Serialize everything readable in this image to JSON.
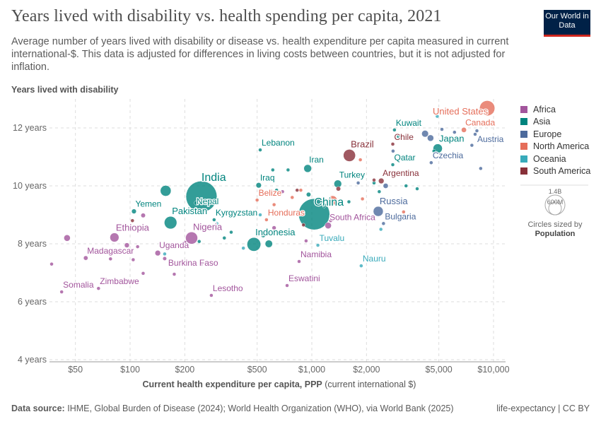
{
  "header": {
    "title": "Years lived with disability vs. health spending per capita, 2021",
    "subtitle": "Average number of years lived with disability or disease vs. health expenditure per capita measured in current international-$. This data is adjusted for differences in living costs between countries, but it is not adjusted for inflation.",
    "logo": "Our World in Data"
  },
  "footer": {
    "source_label": "Data source:",
    "source": "IHME, Global Burden of Disease (2024); World Health Organization (WHO), via World Bank (2025)",
    "license": "life-expectancy | CC BY"
  },
  "size_legend": {
    "values": [
      "1.4B",
      "600M"
    ],
    "caption": "Circles sized by",
    "caption_bold": "Population"
  },
  "colors": {
    "Africa": "#a2559c",
    "Asia": "#00847e",
    "Europe": "#4c6a9c",
    "North America": "#e56e5a",
    "Oceania": "#38aaba",
    "South America": "#883039"
  },
  "chart_data": {
    "type": "scatter",
    "title": "Years lived with disability vs. health spending per capita, 2021",
    "xlabel": "Current health expenditure per capita, PPP",
    "xlabel_unit": "(current international $)",
    "ylabel": "Years lived with disability",
    "x_scale": "log",
    "xlim": [
      35,
      11500
    ],
    "ylim": [
      4,
      12.9
    ],
    "x_ticks": [
      {
        "v": 50,
        "label": "$50"
      },
      {
        "v": 100,
        "label": "$100"
      },
      {
        "v": 200,
        "label": "$200"
      },
      {
        "v": 500,
        "label": "$500"
      },
      {
        "v": 1000,
        "label": "$1,000"
      },
      {
        "v": 2000,
        "label": "$2,000"
      },
      {
        "v": 5000,
        "label": "$5,000"
      },
      {
        "v": 10000,
        "label": "$10,000"
      }
    ],
    "y_ticks": [
      {
        "v": 4,
        "label": "4 years"
      },
      {
        "v": 6,
        "label": "6 years"
      },
      {
        "v": 8,
        "label": "8 years"
      },
      {
        "v": 10,
        "label": "10 years"
      },
      {
        "v": 12,
        "label": "12 years"
      }
    ],
    "grid": true,
    "legend": "right",
    "legend_entries": [
      "Africa",
      "Asia",
      "Europe",
      "North America",
      "Oceania",
      "South America"
    ],
    "points": [
      {
        "name": "United States",
        "region": "North America",
        "x": 9230,
        "y": 12.68,
        "pop": 337,
        "label": true
      },
      {
        "name": "Canada",
        "region": "North America",
        "x": 6870,
        "y": 11.93,
        "pop": 38,
        "label": true
      },
      {
        "name": "Austria",
        "region": "Europe",
        "x": 7920,
        "y": 11.78,
        "pop": 9,
        "label": true
      },
      {
        "name": "Japan",
        "region": "Asia",
        "x": 4930,
        "y": 11.29,
        "pop": 125,
        "label": true
      },
      {
        "name": "Czechia",
        "region": "Europe",
        "x": 4540,
        "y": 10.8,
        "pop": 10,
        "label": true
      },
      {
        "name": "Kuwait",
        "region": "Asia",
        "x": 2850,
        "y": 11.93,
        "pop": 4,
        "label": true
      },
      {
        "name": "Chile",
        "region": "South America",
        "x": 2790,
        "y": 11.44,
        "pop": 19,
        "label": true
      },
      {
        "name": "Qatar",
        "region": "Asia",
        "x": 2790,
        "y": 10.73,
        "pop": 3,
        "label": true
      },
      {
        "name": "Argentina",
        "region": "South America",
        "x": 2410,
        "y": 10.17,
        "pop": 45,
        "label": true
      },
      {
        "name": "Brazil",
        "region": "South America",
        "x": 1610,
        "y": 11.05,
        "pop": 214,
        "label": true
      },
      {
        "name": "Iran",
        "region": "Asia",
        "x": 949,
        "y": 10.6,
        "pop": 88,
        "label": true
      },
      {
        "name": "Turkey",
        "region": "Asia",
        "x": 1390,
        "y": 10.07,
        "pop": 85,
        "label": true
      },
      {
        "name": "China",
        "region": "Asia",
        "x": 1030,
        "y": 9.02,
        "pop": 1420,
        "label": true
      },
      {
        "name": "Russia",
        "region": "Europe",
        "x": 2320,
        "y": 9.12,
        "pop": 145,
        "label": true
      },
      {
        "name": "Bulgaria",
        "region": "Europe",
        "x": 2480,
        "y": 8.7,
        "pop": 7,
        "label": true
      },
      {
        "name": "South Africa",
        "region": "Africa",
        "x": 1230,
        "y": 8.63,
        "pop": 60,
        "label": true
      },
      {
        "name": "Tuvalu",
        "region": "Oceania",
        "x": 1080,
        "y": 7.95,
        "pop": 0.01,
        "label": true
      },
      {
        "name": "Namibia",
        "region": "Africa",
        "x": 851,
        "y": 7.39,
        "pop": 3,
        "label": true
      },
      {
        "name": "Nauru",
        "region": "Oceania",
        "x": 1870,
        "y": 7.24,
        "pop": 0.01,
        "label": true
      },
      {
        "name": "Eswatini",
        "region": "Africa",
        "x": 731,
        "y": 6.56,
        "pop": 1,
        "label": true
      },
      {
        "name": "Lebanon",
        "region": "Asia",
        "x": 520,
        "y": 11.24,
        "pop": 5,
        "label": true
      },
      {
        "name": "Iraq",
        "region": "Asia",
        "x": 510,
        "y": 10.02,
        "pop": 43,
        "label": true
      },
      {
        "name": "Belize",
        "region": "North America",
        "x": 500,
        "y": 9.51,
        "pop": 0.4,
        "label": true
      },
      {
        "name": "Honduras",
        "region": "North America",
        "x": 563,
        "y": 8.83,
        "pop": 10,
        "label": true
      },
      {
        "name": "Kyrgyzstan",
        "region": "Asia",
        "x": 290,
        "y": 8.83,
        "pop": 7,
        "label": true
      },
      {
        "name": "Indonesia",
        "region": "Asia",
        "x": 480,
        "y": 7.98,
        "pop": 274,
        "label": true
      },
      {
        "name": "Lesotho",
        "region": "Africa",
        "x": 280,
        "y": 6.22,
        "pop": 2,
        "label": true
      },
      {
        "name": "India",
        "region": "Asia",
        "x": 247,
        "y": 9.63,
        "pop": 1410,
        "label": true
      },
      {
        "name": "Nepal",
        "region": "Asia",
        "x": 232,
        "y": 9.41,
        "pop": 30,
        "label": true
      },
      {
        "name": "Pakistan",
        "region": "Asia",
        "x": 167,
        "y": 8.73,
        "pop": 230,
        "label": true
      },
      {
        "name": "Yemen",
        "region": "Asia",
        "x": 105,
        "y": 9.12,
        "pop": 33,
        "label": true
      },
      {
        "name": "Nigeria",
        "region": "Africa",
        "x": 218,
        "y": 8.2,
        "pop": 213,
        "label": true
      },
      {
        "name": "Uganda",
        "region": "Africa",
        "x": 142,
        "y": 7.68,
        "pop": 45,
        "label": true
      },
      {
        "name": "Burkina Faso",
        "region": "Africa",
        "x": 155,
        "y": 7.49,
        "pop": 22,
        "label": true
      },
      {
        "name": "Ethiopia",
        "region": "Africa",
        "x": 82,
        "y": 8.22,
        "pop": 120,
        "label": true
      },
      {
        "name": "Madagascar",
        "region": "Africa",
        "x": 57,
        "y": 7.51,
        "pop": 29,
        "label": true
      },
      {
        "name": "Somalia",
        "region": "Africa",
        "x": 42,
        "y": 6.34,
        "pop": 17,
        "label": true
      },
      {
        "name": "Zimbabwe",
        "region": "Africa",
        "x": 67,
        "y": 6.46,
        "pop": 16,
        "label": true
      },
      {
        "name": "",
        "region": "Asia",
        "x": 157,
        "y": 9.83,
        "pop": 170
      },
      {
        "name": "",
        "region": "Africa",
        "x": 45,
        "y": 8.2,
        "pop": 60
      },
      {
        "name": "",
        "region": "Africa",
        "x": 37,
        "y": 7.3,
        "pop": 5
      },
      {
        "name": "",
        "region": "Africa",
        "x": 118,
        "y": 8.98,
        "pop": 30
      },
      {
        "name": "",
        "region": "Africa",
        "x": 96,
        "y": 7.95,
        "pop": 35
      },
      {
        "name": "",
        "region": "Africa",
        "x": 104,
        "y": 7.45,
        "pop": 8
      },
      {
        "name": "",
        "region": "Africa",
        "x": 118,
        "y": 6.98,
        "pop": 5
      },
      {
        "name": "",
        "region": "Africa",
        "x": 78,
        "y": 7.48,
        "pop": 6
      },
      {
        "name": "",
        "region": "Africa",
        "x": 88,
        "y": 6.7,
        "pop": 5
      },
      {
        "name": "",
        "region": "Africa",
        "x": 110,
        "y": 7.9,
        "pop": 6
      },
      {
        "name": "",
        "region": "Africa",
        "x": 175,
        "y": 6.95,
        "pop": 5
      },
      {
        "name": "",
        "region": "Africa",
        "x": 245,
        "y": 7.28,
        "pop": 5
      },
      {
        "name": "",
        "region": "Africa",
        "x": 200,
        "y": 8.05,
        "pop": 10
      },
      {
        "name": "",
        "region": "Africa",
        "x": 620,
        "y": 8.55,
        "pop": 25
      },
      {
        "name": "",
        "region": "Africa",
        "x": 690,
        "y": 9.8,
        "pop": 12
      },
      {
        "name": "",
        "region": "Africa",
        "x": 1270,
        "y": 8.8,
        "pop": 4
      },
      {
        "name": "",
        "region": "Africa",
        "x": 930,
        "y": 8.1,
        "pop": 3
      },
      {
        "name": "",
        "region": "Asia",
        "x": 360,
        "y": 8.4,
        "pop": 18
      },
      {
        "name": "",
        "region": "Asia",
        "x": 330,
        "y": 8.2,
        "pop": 8
      },
      {
        "name": "",
        "region": "Asia",
        "x": 240,
        "y": 8.08,
        "pop": 12
      },
      {
        "name": "",
        "region": "Asia",
        "x": 540,
        "y": 8.3,
        "pop": 35
      },
      {
        "name": "",
        "region": "Asia",
        "x": 580,
        "y": 8.0,
        "pop": 80
      },
      {
        "name": "",
        "region": "Asia",
        "x": 640,
        "y": 9.85,
        "pop": 3
      },
      {
        "name": "",
        "region": "Asia",
        "x": 740,
        "y": 10.55,
        "pop": 4
      },
      {
        "name": "",
        "region": "Asia",
        "x": 610,
        "y": 10.55,
        "pop": 4
      },
      {
        "name": "",
        "region": "Asia",
        "x": 960,
        "y": 9.7,
        "pop": 30
      },
      {
        "name": "",
        "region": "Asia",
        "x": 1170,
        "y": 9.3,
        "pop": 5
      },
      {
        "name": "",
        "region": "Asia",
        "x": 1600,
        "y": 9.45,
        "pop": 10
      },
      {
        "name": "",
        "region": "Asia",
        "x": 2200,
        "y": 10.1,
        "pop": 4
      },
      {
        "name": "",
        "region": "Asia",
        "x": 3300,
        "y": 10.0,
        "pop": 9
      },
      {
        "name": "",
        "region": "Asia",
        "x": 3800,
        "y": 9.9,
        "pop": 3
      },
      {
        "name": "",
        "region": "Asia",
        "x": 2350,
        "y": 9.8,
        "pop": 3
      },
      {
        "name": "",
        "region": "Asia",
        "x": 3000,
        "y": 11.7,
        "pop": 3
      },
      {
        "name": "",
        "region": "Asia",
        "x": 4700,
        "y": 11.2,
        "pop": 5
      },
      {
        "name": "",
        "region": "Europe",
        "x": 4200,
        "y": 11.8,
        "pop": 67
      },
      {
        "name": "",
        "region": "Europe",
        "x": 4500,
        "y": 11.65,
        "pop": 60
      },
      {
        "name": "",
        "region": "Europe",
        "x": 5200,
        "y": 11.95,
        "pop": 10
      },
      {
        "name": "",
        "region": "Europe",
        "x": 6100,
        "y": 11.85,
        "pop": 11
      },
      {
        "name": "",
        "region": "Europe",
        "x": 8100,
        "y": 11.9,
        "pop": 9
      },
      {
        "name": "",
        "region": "Europe",
        "x": 7600,
        "y": 11.4,
        "pop": 5
      },
      {
        "name": "",
        "region": "Europe",
        "x": 8500,
        "y": 10.6,
        "pop": 5
      },
      {
        "name": "",
        "region": "Europe",
        "x": 2800,
        "y": 11.2,
        "pop": 2
      },
      {
        "name": "",
        "region": "Europe",
        "x": 2550,
        "y": 10.0,
        "pop": 38
      },
      {
        "name": "",
        "region": "Europe",
        "x": 3000,
        "y": 9.5,
        "pop": 10
      },
      {
        "name": "",
        "region": "Europe",
        "x": 2600,
        "y": 8.9,
        "pop": 6
      },
      {
        "name": "",
        "region": "Europe",
        "x": 1800,
        "y": 10.1,
        "pop": 3
      },
      {
        "name": "",
        "region": "Europe",
        "x": 3400,
        "y": 12.2,
        "pop": 2
      },
      {
        "name": "",
        "region": "North America",
        "x": 3200,
        "y": 9.1,
        "pop": 5
      },
      {
        "name": "",
        "region": "North America",
        "x": 870,
        "y": 9.85,
        "pop": 2
      },
      {
        "name": "",
        "region": "North America",
        "x": 780,
        "y": 9.6,
        "pop": 3
      },
      {
        "name": "",
        "region": "North America",
        "x": 620,
        "y": 9.35,
        "pop": 4
      },
      {
        "name": "",
        "region": "North America",
        "x": 1300,
        "y": 9.5,
        "pop": 126
      },
      {
        "name": "",
        "region": "North America",
        "x": 1900,
        "y": 9.55,
        "pop": 5
      },
      {
        "name": "",
        "region": "North America",
        "x": 1850,
        "y": 10.9,
        "pop": 4
      },
      {
        "name": "",
        "region": "Oceania",
        "x": 520,
        "y": 9.0,
        "pop": 0.3
      },
      {
        "name": "",
        "region": "Oceania",
        "x": 420,
        "y": 7.85,
        "pop": 1
      },
      {
        "name": "",
        "region": "Oceania",
        "x": 300,
        "y": 8.7,
        "pop": 0.5
      },
      {
        "name": "",
        "region": "Oceania",
        "x": 2400,
        "y": 8.5,
        "pop": 0.1
      },
      {
        "name": "",
        "region": "Oceania",
        "x": 4900,
        "y": 12.4,
        "pop": 5
      },
      {
        "name": "",
        "region": "Oceania",
        "x": 155,
        "y": 7.65,
        "pop": 0.3
      },
      {
        "name": "",
        "region": "South America",
        "x": 103,
        "y": 8.8,
        "pop": 11
      },
      {
        "name": "",
        "region": "South America",
        "x": 1400,
        "y": 9.9,
        "pop": 30
      },
      {
        "name": "",
        "region": "South America",
        "x": 830,
        "y": 9.85,
        "pop": 18
      },
      {
        "name": "",
        "region": "South America",
        "x": 2200,
        "y": 10.2,
        "pop": 3
      },
      {
        "name": "",
        "region": "South America",
        "x": 900,
        "y": 8.65,
        "pop": 12
      }
    ]
  }
}
